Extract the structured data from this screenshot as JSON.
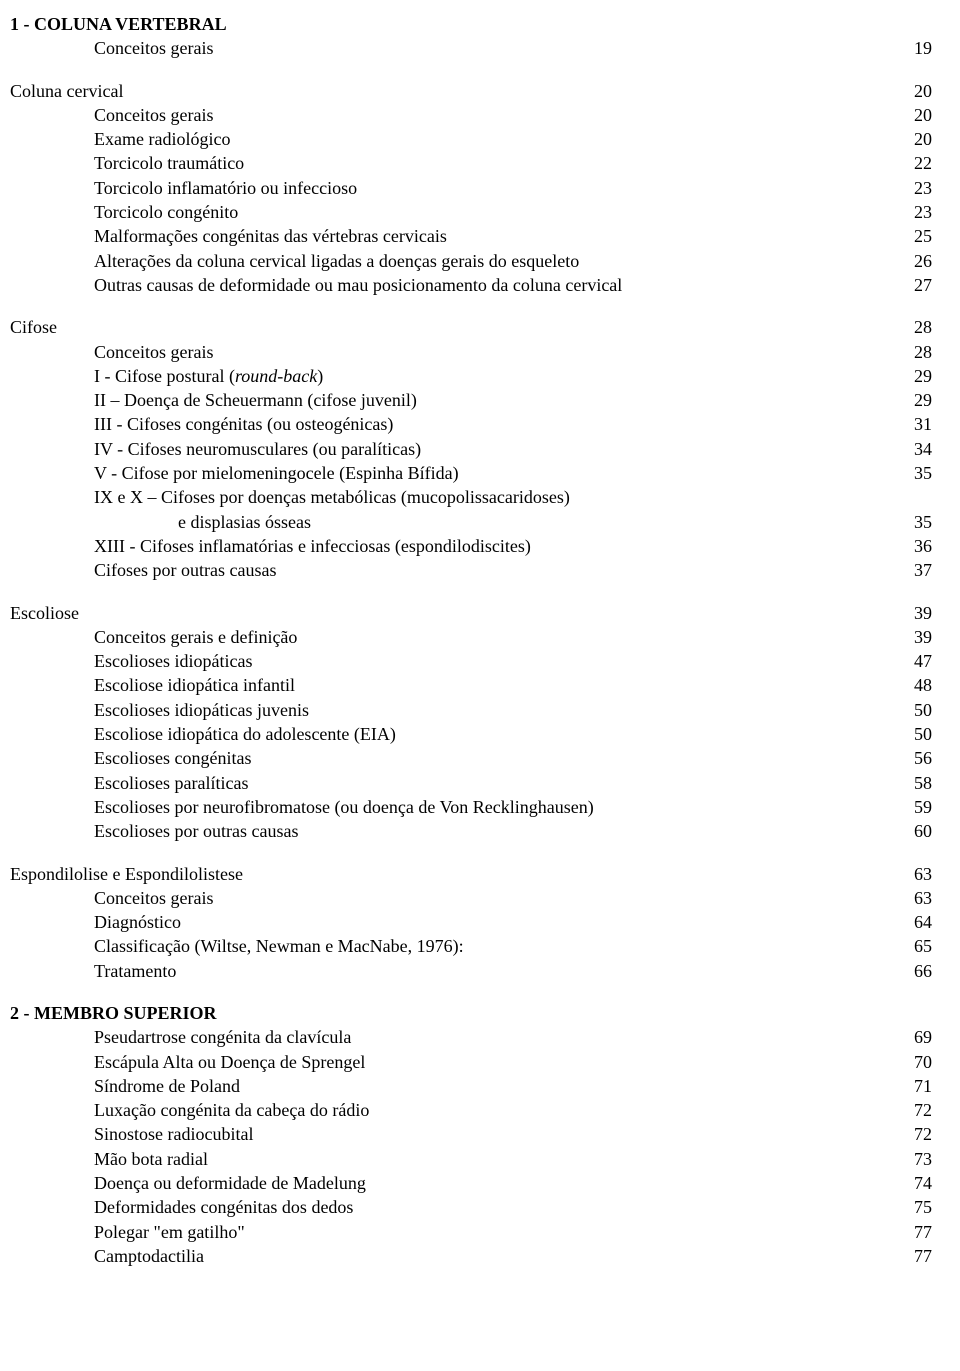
{
  "entries": [
    {
      "indent": 0,
      "label": "1 - COLUNA VERTEBRAL",
      "page": "",
      "bold": true
    },
    {
      "indent": 1,
      "label": "Conceitos gerais",
      "page": "19"
    },
    {
      "gap": true
    },
    {
      "indent": 0,
      "label": "Coluna cervical",
      "page": "20"
    },
    {
      "indent": 1,
      "label": "Conceitos gerais",
      "page": "20"
    },
    {
      "indent": 1,
      "label": "Exame radiológico",
      "page": "20"
    },
    {
      "indent": 1,
      "label": "Torcicolo traumático",
      "page": "22"
    },
    {
      "indent": 1,
      "label": "Torcicolo inflamatório ou infeccioso",
      "page": "23"
    },
    {
      "indent": 1,
      "label": "Torcicolo congénito",
      "page": "23"
    },
    {
      "indent": 1,
      "label": "Malformações congénitas das vértebras cervicais",
      "page": "25"
    },
    {
      "indent": 1,
      "label": "Alterações da coluna cervical ligadas a doenças gerais do esqueleto",
      "page": "26"
    },
    {
      "indent": 1,
      "label": "Outras causas de deformidade ou mau posicionamento da coluna cervical",
      "page": "27"
    },
    {
      "gap": true
    },
    {
      "indent": 0,
      "label": "Cifose",
      "page": "28"
    },
    {
      "indent": 1,
      "label": "Conceitos gerais",
      "page": "28"
    },
    {
      "indent": 1,
      "label_html": "I - Cifose postural (<span class=\"italic\">round-back</span>)",
      "page": "29"
    },
    {
      "indent": 1,
      "label": "II – Doença de Scheuermann (cifose juvenil)",
      "page": "29"
    },
    {
      "indent": 1,
      "label": "III - Cifoses congénitas (ou osteogénicas)",
      "page": "31"
    },
    {
      "indent": 1,
      "label": "IV - Cifoses neuromusculares (ou paralíticas)",
      "page": "34"
    },
    {
      "indent": 1,
      "label": "V - Cifose por mielomeningocele (Espinha Bífida)",
      "page": "35"
    },
    {
      "indent": 1,
      "label": "IX  e X – Cifoses por doenças metabólicas (mucopolissacaridoses)",
      "page": ""
    },
    {
      "indent": 2,
      "label": "e displasias ósseas",
      "page": "35"
    },
    {
      "indent": 1,
      "label": "XIII - Cifoses inflamatórias e infecciosas (espondilodiscites)",
      "page": "36"
    },
    {
      "indent": 1,
      "label": "Cifoses por outras causas",
      "page": "37"
    },
    {
      "gap": true
    },
    {
      "indent": 0,
      "label": "Escoliose",
      "page": "39"
    },
    {
      "indent": 1,
      "label": "Conceitos gerais e definição",
      "page": "39"
    },
    {
      "indent": 1,
      "label": "Escolioses idiopáticas",
      "page": "47"
    },
    {
      "indent": 1,
      "label": "Escoliose idiopática infantil",
      "page": "48"
    },
    {
      "indent": 1,
      "label": "Escolioses idiopáticas juvenis",
      "page": "50"
    },
    {
      "indent": 1,
      "label": "Escoliose idiopática do adolescente (EIA)",
      "page": "50"
    },
    {
      "indent": 1,
      "label": "Escolioses congénitas",
      "page": "56"
    },
    {
      "indent": 1,
      "label": "Escolioses paralíticas",
      "page": "58"
    },
    {
      "indent": 1,
      "label": "Escolioses por neurofibromatose (ou doença de Von Recklinghausen)",
      "page": "59"
    },
    {
      "indent": 1,
      "label": "Escolioses por outras causas",
      "page": "60"
    },
    {
      "gap": true
    },
    {
      "indent": 0,
      "label": "Espondilolise e Espondilolistese",
      "page": "63"
    },
    {
      "indent": 1,
      "label": "Conceitos gerais",
      "page": "63"
    },
    {
      "indent": 1,
      "label": "Diagnóstico",
      "page": "64"
    },
    {
      "indent": 1,
      "label": "Classificação (Wiltse, Newman e MacNabe, 1976):",
      "page": "65"
    },
    {
      "indent": 1,
      "label": "Tratamento",
      "page": "66"
    },
    {
      "gap": true
    },
    {
      "indent": 0,
      "label": "2 - MEMBRO SUPERIOR",
      "page": "",
      "bold": true
    },
    {
      "indent": 1,
      "label": "Pseudartrose congénita da clavícula",
      "page": "69"
    },
    {
      "indent": 1,
      "label": "Escápula Alta ou Doença de Sprengel",
      "page": "70"
    },
    {
      "indent": 1,
      "label": "Síndrome de Poland",
      "page": "71"
    },
    {
      "indent": 1,
      "label": "Luxação congénita da cabeça do rádio",
      "page": "72"
    },
    {
      "indent": 1,
      "label": "Sinostose radiocubital",
      "page": "72"
    },
    {
      "indent": 1,
      "label": "Mão bota radial",
      "page": "73"
    },
    {
      "indent": 1,
      "label": "Doença ou deformidade de Madelung",
      "page": "74"
    },
    {
      "indent": 1,
      "label": "Deformidades congénitas dos dedos",
      "page": "75"
    },
    {
      "indent": 1,
      "label": "Polegar \"em gatilho\"",
      "page": "77"
    },
    {
      "indent": 1,
      "label": "Camptodactilia",
      "page": "77"
    }
  ]
}
